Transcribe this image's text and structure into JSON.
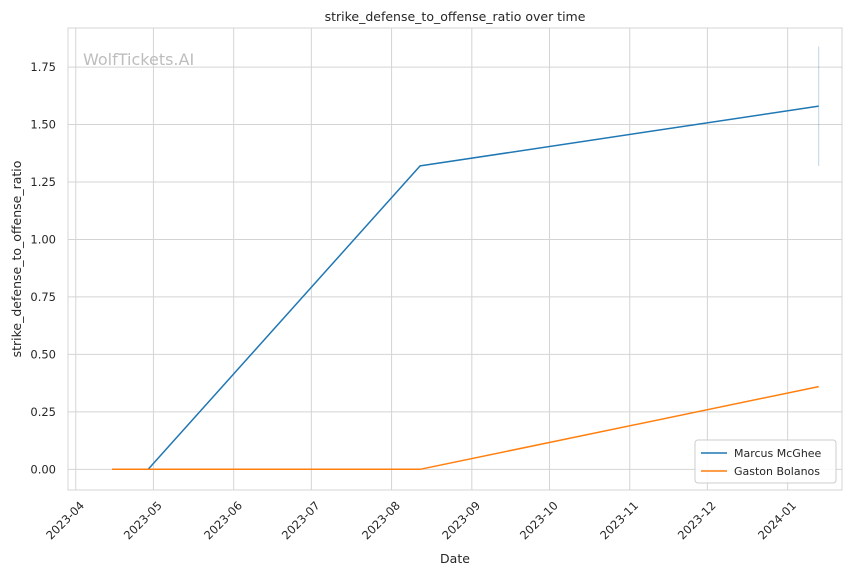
{
  "chart_data": {
    "type": "line",
    "title": "strike_defense_to_offense_ratio over time",
    "xlabel": "Date",
    "ylabel": "strike_defense_to_offense_ratio",
    "watermark": "WolfTickets.AI",
    "grid": true,
    "legend_position": "lower-right",
    "xlim": [
      "2023-03-29",
      "2024-01-22"
    ],
    "ylim": [
      -0.09,
      1.92
    ],
    "x_ticks": [
      "2023-04",
      "2023-05",
      "2023-06",
      "2023-07",
      "2023-08",
      "2023-09",
      "2023-10",
      "2023-11",
      "2023-12",
      "2024-01"
    ],
    "y_ticks": [
      "0.00",
      "0.25",
      "0.50",
      "0.75",
      "1.00",
      "1.25",
      "1.50",
      "1.75"
    ],
    "series": [
      {
        "name": "Marcus McGhee",
        "color": "#1f77b4",
        "points": [
          {
            "x": "2023-04-29",
            "y": 0.0
          },
          {
            "x": "2023-08-12",
            "y": 1.32
          },
          {
            "x": "2024-01-13",
            "y": 1.58
          }
        ],
        "error_bar": {
          "x": "2024-01-13",
          "low": 1.32,
          "high": 1.84
        }
      },
      {
        "name": "Gaston Bolanos",
        "color": "#ff7f0e",
        "points": [
          {
            "x": "2023-04-15",
            "y": 0.0
          },
          {
            "x": "2023-08-12",
            "y": 0.0
          },
          {
            "x": "2024-01-13",
            "y": 0.36
          }
        ]
      }
    ]
  }
}
